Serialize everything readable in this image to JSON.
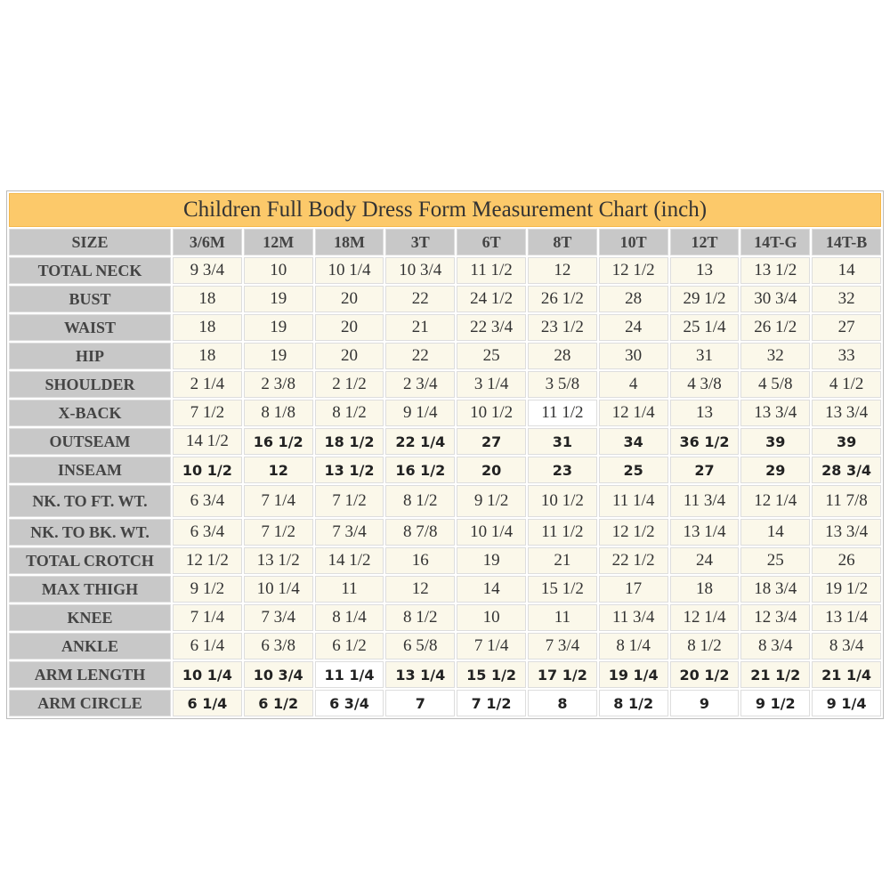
{
  "table": {
    "title": "Children Full Body Dress Form Measurement Chart (inch)",
    "header": [
      "SIZE",
      "3/6M",
      "12M",
      "18M",
      "3T",
      "6T",
      "8T",
      "10T",
      "12T",
      "14T-G",
      "14T-B"
    ],
    "rows": [
      [
        "TOTAL NECK",
        "9 3/4",
        "10",
        "10 1/4",
        "10 3/4",
        "11 1/2",
        "12",
        "12 1/2",
        "13",
        "13 1/2",
        "14"
      ],
      [
        "BUST",
        "18",
        "19",
        "20",
        "22",
        "24 1/2",
        "26 1/2",
        "28",
        "29 1/2",
        "30 3/4",
        "32"
      ],
      [
        "WAIST",
        "18",
        "19",
        "20",
        "21",
        "22 3/4",
        "23 1/2",
        "24",
        "25 1/4",
        "26 1/2",
        "27"
      ],
      [
        "HIP",
        "18",
        "19",
        "20",
        "22",
        "25",
        "28",
        "30",
        "31",
        "32",
        "33"
      ],
      [
        "SHOULDER",
        "2 1/4",
        "2 3/8",
        "2 1/2",
        "2 3/4",
        "3 1/4",
        "3 5/8",
        "4",
        "4 3/8",
        "4 5/8",
        "4 1/2"
      ],
      [
        "X-BACK",
        "7 1/2",
        "8 1/8",
        "8 1/2",
        "9 1/4",
        "10 1/2",
        "11 1/2",
        "12 1/4",
        "13",
        "13 3/4",
        "13 3/4"
      ],
      [
        "OUTSEAM",
        "14 1/2",
        "16 1/2",
        "18 1/2",
        "22 1/4",
        "27",
        "31",
        "34",
        "36 1/2",
        "39",
        "39"
      ],
      [
        "INSEAM",
        "10 1/2",
        "12",
        "13 1/2",
        "16 1/2",
        "20",
        "23",
        "25",
        "27",
        "29",
        "28 3/4"
      ],
      [
        "NK. TO FT. WT.",
        "6 3/4",
        "7 1/4",
        "7 1/2",
        "8 1/2",
        "9 1/2",
        "10 1/2",
        "11 1/4",
        "11 3/4",
        "12 1/4",
        "11 7/8"
      ],
      [
        "NK. TO BK. WT.",
        "6 3/4",
        "7 1/2",
        "7 3/4",
        "8 7/8",
        "10 1/4",
        "11 1/2",
        "12 1/2",
        "13 1/4",
        "14",
        "13 3/4"
      ],
      [
        "TOTAL CROTCH",
        "12 1/2",
        "13 1/2",
        "14 1/2",
        "16",
        "19",
        "21",
        "22 1/2",
        "24",
        "25",
        "26"
      ],
      [
        "MAX THIGH",
        "9 1/2",
        "10 1/4",
        "11",
        "12",
        "14",
        "15 1/2",
        "17",
        "18",
        "18 3/4",
        "19 1/2"
      ],
      [
        "KNEE",
        "7 1/4",
        "7 3/4",
        "8 1/4",
        "8 1/2",
        "10",
        "11",
        "11 3/4",
        "12 1/4",
        "12 3/4",
        "13 1/4"
      ],
      [
        "ANKLE",
        "6 1/4",
        "6 3/8",
        "6 1/2",
        "6 5/8",
        "7 1/4",
        "7 3/4",
        "8 1/4",
        "8 1/2",
        "8 3/4",
        "8 3/4"
      ],
      [
        "ARM LENGTH",
        "10 1/4",
        "10 3/4",
        "11 1/4",
        "13 1/4",
        "15 1/2",
        "17 1/2",
        "19 1/4",
        "20 1/2",
        "21 1/2",
        "21 1/4"
      ],
      [
        "ARM CIRCLE",
        "6 1/4",
        "6 1/2",
        "6 3/4",
        "7",
        "7 1/2",
        "8",
        "8 1/2",
        "9",
        "9 1/2",
        "9 1/4"
      ]
    ]
  }
}
